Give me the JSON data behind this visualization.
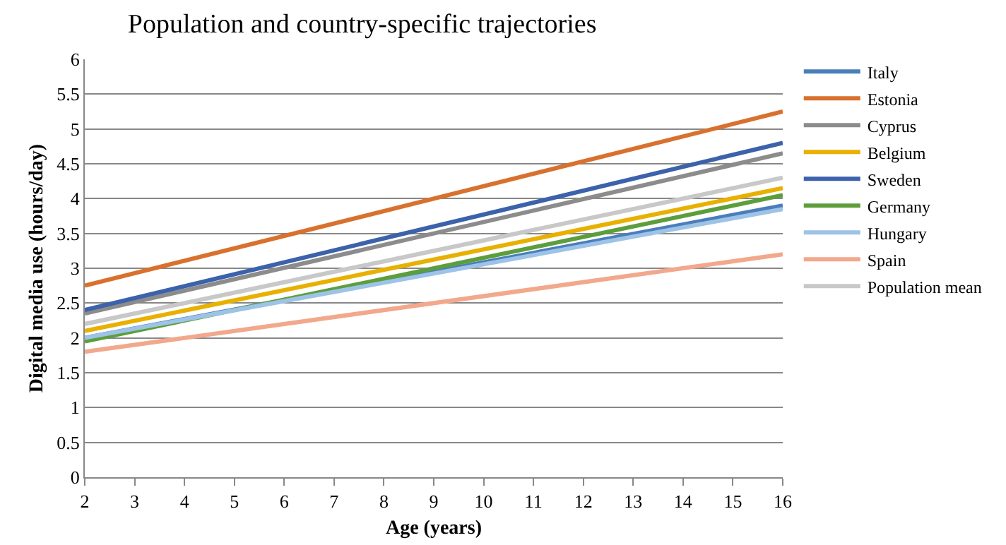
{
  "chart_data": {
    "type": "line",
    "title": "Population and country-specific trajectories",
    "xlabel": "Age (years)",
    "ylabel": "Digital media use (hours/day)",
    "x": [
      2,
      16
    ],
    "series": [
      {
        "name": "Italy",
        "color": "#4a7ebb",
        "values": [
          2.0,
          3.9
        ]
      },
      {
        "name": "Estonia",
        "color": "#d9712e",
        "values": [
          2.75,
          5.25
        ]
      },
      {
        "name": "Cyprus",
        "color": "#8c8c8c",
        "values": [
          2.35,
          4.65
        ]
      },
      {
        "name": "Belgium",
        "color": "#e8b000",
        "values": [
          2.1,
          4.15
        ]
      },
      {
        "name": "Sweden",
        "color": "#3b62ab",
        "values": [
          2.4,
          4.8
        ]
      },
      {
        "name": "Germany",
        "color": "#5c9e3c",
        "values": [
          1.95,
          4.05
        ]
      },
      {
        "name": "Hungary",
        "color": "#9dc3e6",
        "values": [
          2.0,
          3.85
        ]
      },
      {
        "name": "Spain",
        "color": "#f2a88c",
        "values": [
          1.8,
          3.2
        ]
      },
      {
        "name": "Population mean",
        "color": "#c8c8c8",
        "values": [
          2.2,
          4.3
        ]
      }
    ],
    "xlim": [
      2,
      16
    ],
    "xticks": [
      2,
      3,
      4,
      5,
      6,
      7,
      8,
      9,
      10,
      11,
      12,
      13,
      14,
      15,
      16
    ],
    "ylim": [
      0,
      6
    ],
    "yticks": [
      0,
      0.5,
      1,
      1.5,
      2,
      2.5,
      3,
      3.5,
      4,
      4.5,
      5,
      5.5,
      6
    ],
    "grid": "y",
    "legend": "right",
    "marker": "none",
    "line_style": "solid"
  }
}
